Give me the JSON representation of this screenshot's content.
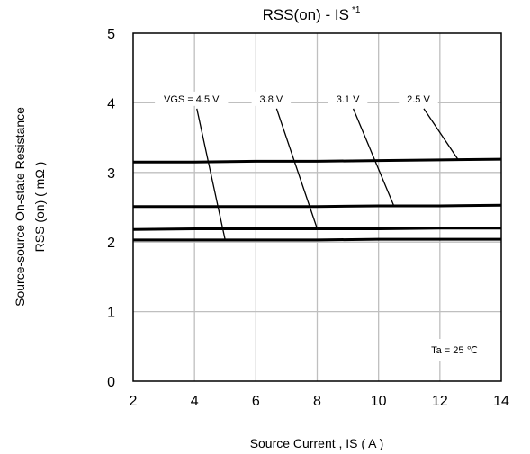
{
  "chart_data": {
    "type": "line",
    "title": "RSS(on) - IS",
    "title_superscript": "*1",
    "xlabel": "Source Current , IS ( A )",
    "ylabel_line1": "Source-source On-state Resistance",
    "ylabel_line2": "RSS (on) ( mΩ )",
    "xlim": [
      2,
      14
    ],
    "ylim": [
      0,
      5
    ],
    "xticks": [
      2,
      4,
      6,
      8,
      10,
      12,
      14
    ],
    "yticks": [
      0,
      1,
      2,
      3,
      4,
      5
    ],
    "grid": true,
    "x": [
      2,
      4,
      6,
      8,
      10,
      12,
      14
    ],
    "series": [
      {
        "name": "VGS = 4.5 V",
        "values": [
          2.03,
          2.03,
          2.03,
          2.03,
          2.04,
          2.04,
          2.04
        ]
      },
      {
        "name": "3.8 V",
        "values": [
          2.18,
          2.19,
          2.19,
          2.19,
          2.19,
          2.2,
          2.2
        ]
      },
      {
        "name": "3.1 V",
        "values": [
          2.51,
          2.51,
          2.51,
          2.51,
          2.52,
          2.52,
          2.53
        ]
      },
      {
        "name": "2.5 V",
        "values": [
          3.15,
          3.15,
          3.16,
          3.16,
          3.17,
          3.18,
          3.19
        ]
      }
    ],
    "annotations": [
      {
        "text": "VGS = 4.5 V",
        "series": 0,
        "label_x": 3.9,
        "label_y": 4.02,
        "point_x": 5.0,
        "point_y": 2.03
      },
      {
        "text": "3.8 V",
        "series": 1,
        "label_x": 6.5,
        "label_y": 4.02,
        "point_x": 8.0,
        "point_y": 2.19
      },
      {
        "text": "3.1 V",
        "series": 2,
        "label_x": 9.0,
        "label_y": 4.02,
        "point_x": 10.5,
        "point_y": 2.52
      },
      {
        "text": "2.5 V",
        "series": 3,
        "label_x": 11.3,
        "label_y": 4.02,
        "point_x": 12.6,
        "point_y": 3.18
      }
    ],
    "condition_label": "Ta = 25 ℃",
    "colors": {
      "line": "#000000",
      "grid": "#bfbfbf",
      "background": "#ffffff"
    }
  }
}
